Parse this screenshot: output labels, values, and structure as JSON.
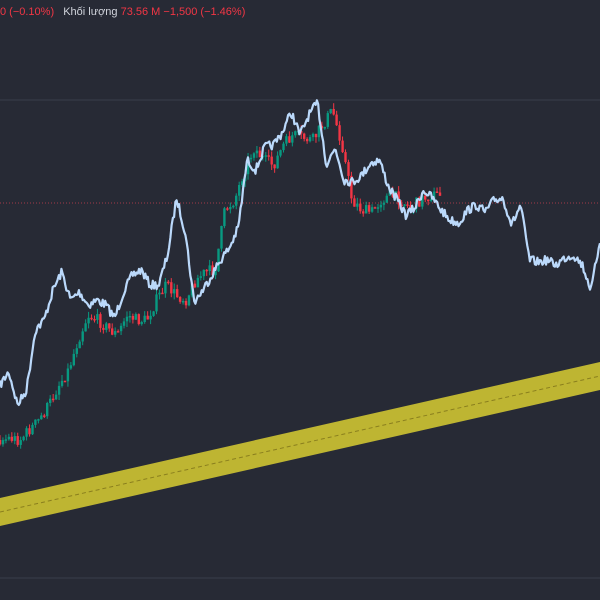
{
  "header": {
    "change_suffix": "0 (−0.10%)",
    "volume_label": "Khối lượng",
    "volume_value": "73.56 M",
    "volume_change": "−1,500 (−1.46%)"
  },
  "colors": {
    "background": "#272a35",
    "up_candle": "#089981",
    "down_candle": "#f23645",
    "comparison_line": "#bbd9fb",
    "channel_band": "#d4c832",
    "grid_line": "#3a3e4a",
    "price_line": "#a23a49"
  },
  "chart_data": {
    "type": "line",
    "series": [
      {
        "values": [
          385,
          372,
          405,
          390,
          330,
          320,
          290,
          272,
          300,
          292,
          305,
          300,
          305,
          318,
          292,
          275,
          270,
          285,
          285,
          255,
          198,
          232,
          302,
          290,
          275,
          260,
          248,
          228,
          160,
          170,
          147,
          145,
          132,
          112,
          135,
          115,
          103,
          165,
          148,
          180,
          182,
          175,
          163,
          160,
          186,
          200,
          215,
          208,
          190,
          198,
          210,
          220,
          223,
          210,
          205,
          212,
          200,
          198,
          225,
          205,
          260,
          262,
          260,
          265,
          258,
          255,
          265,
          290,
          240
        ]
      },
      {
        "values": [
          440,
          438,
          440,
          430,
          420,
          405,
          385,
          370,
          340,
          315,
          320,
          328,
          335,
          315,
          320,
          320,
          300,
          285,
          295,
          300,
          280,
          272,
          270,
          210,
          200,
          170,
          148,
          160,
          165,
          145,
          135,
          138,
          140,
          125,
          110,
          145,
          200,
          210,
          212,
          200,
          195,
          200,
          208,
          200,
          195,
          195
        ]
      }
    ]
  }
}
